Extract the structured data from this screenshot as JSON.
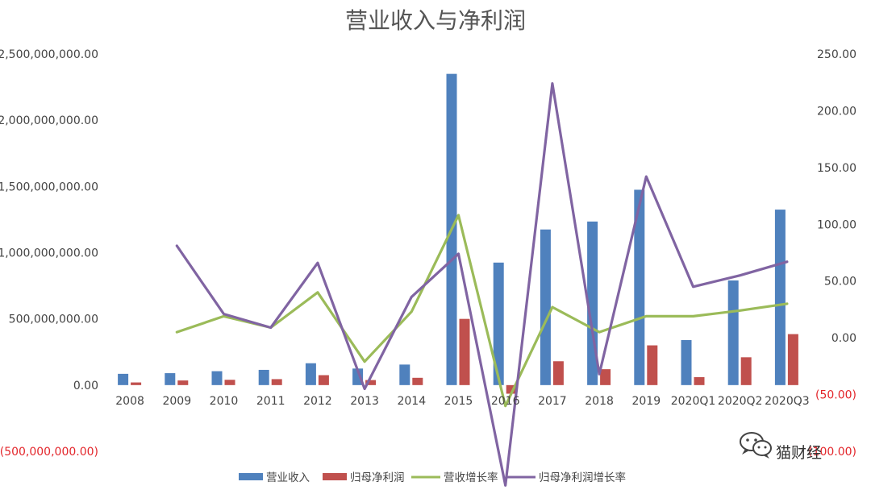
{
  "chart_data": {
    "type": "bar",
    "title": "营业收入与净利润",
    "categories": [
      "2008",
      "2009",
      "2010",
      "2011",
      "2012",
      "2013",
      "2014",
      "2015",
      "2016",
      "2017",
      "2018",
      "2019",
      "2020Q1",
      "2020Q2",
      "2020Q3"
    ],
    "series": [
      {
        "name": "营业收入",
        "axis": "left",
        "type": "bar",
        "color": "#4f81bd",
        "values": [
          85000000,
          90000000,
          105000000,
          115000000,
          165000000,
          125000000,
          155000000,
          2350000000,
          925000000,
          1175000000,
          1235000000,
          1475000000,
          340000000,
          790000000,
          1325000000
        ]
      },
      {
        "name": "归母净利润",
        "axis": "left",
        "type": "bar",
        "color": "#c0504d",
        "values": [
          20000000,
          35000000,
          40000000,
          45000000,
          75000000,
          38000000,
          55000000,
          500000000,
          -65000000,
          180000000,
          120000000,
          300000000,
          60000000,
          210000000,
          385000000
        ]
      },
      {
        "name": "营收增长率",
        "axis": "right",
        "type": "line",
        "color": "#9bbb59",
        "values": [
          null,
          5,
          19,
          9,
          40,
          -21,
          23,
          108,
          -60,
          27,
          5,
          19,
          19,
          24,
          30
        ]
      },
      {
        "name": "归母净利润增长率",
        "axis": "right",
        "type": "line",
        "color": "#8064a2",
        "values": [
          null,
          81,
          21,
          9,
          66,
          -45,
          36,
          74,
          -130,
          224,
          -32,
          142,
          45,
          55,
          67
        ]
      }
    ],
    "ylim_left": [
      -500000000,
      2500000000
    ],
    "ylim_right": [
      -100,
      250
    ],
    "yticks_left": [
      "(500,000,000.00)",
      "0.00",
      "500,000,000.00",
      "1,000,000,000.00",
      "1,500,000,000.00",
      "2,000,000,000.00",
      "2,500,000,000.00"
    ],
    "yticks_right": [
      "(100.00)",
      "(50.00)",
      "0.00",
      "50.00",
      "100.00",
      "150.00",
      "200.00",
      "250.00"
    ],
    "negative_tick_color": "#e3262b",
    "grid": false,
    "legend_position": "bottom"
  },
  "watermark": {
    "icon": "wechat-icon",
    "text": "猫财经"
  }
}
